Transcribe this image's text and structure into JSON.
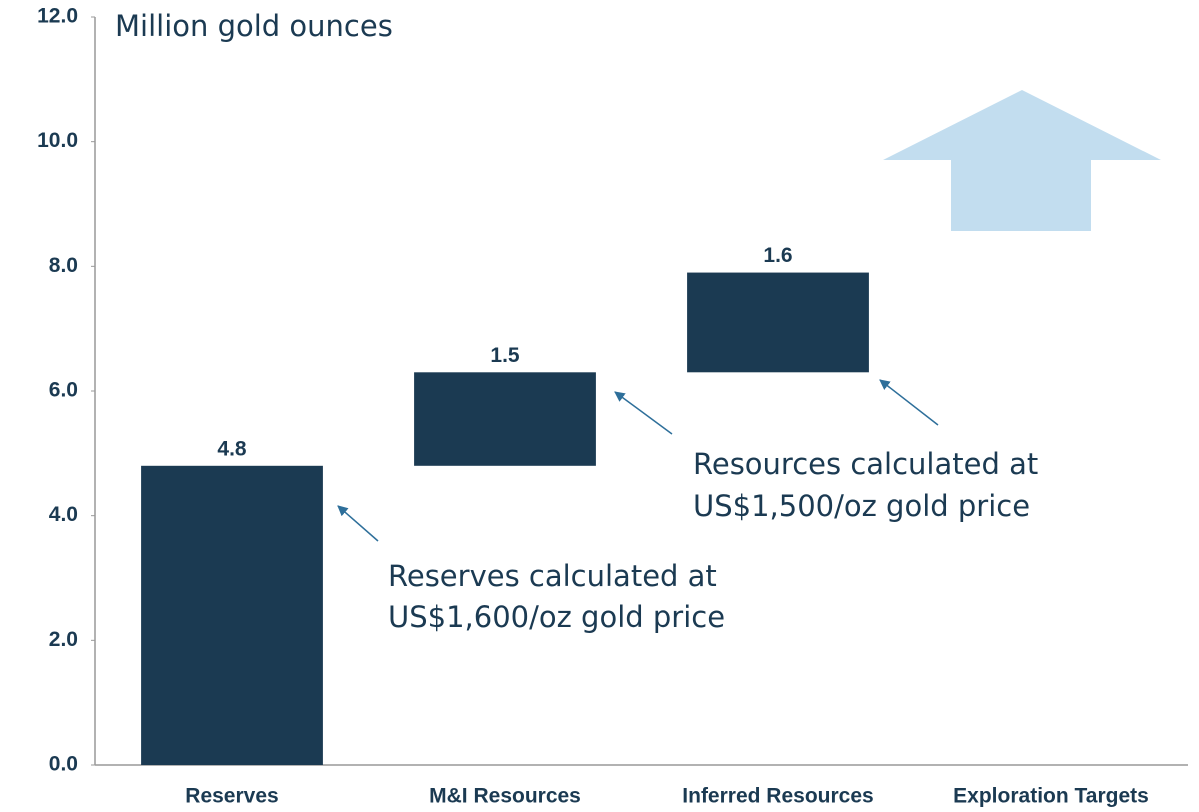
{
  "chart_data": {
    "type": "waterfall",
    "y_label": "Million gold ounces",
    "categories": [
      "Reserves",
      "M&I Resources",
      "Inferred Resources",
      "Exploration Targets"
    ],
    "values": [
      4.8,
      1.5,
      1.6,
      null
    ],
    "color": "#1b3a52",
    "ylim": [
      0,
      12
    ],
    "yticks": [
      {
        "value": 0,
        "label": "0.0"
      },
      {
        "value": 2,
        "label": "2.0"
      },
      {
        "value": 4,
        "label": "4.0"
      },
      {
        "value": 6,
        "label": "6.0"
      },
      {
        "value": 8,
        "label": "8.0"
      },
      {
        "value": 10,
        "label": "10.0"
      },
      {
        "value": 12,
        "label": "12.0"
      }
    ],
    "annotations": [
      [
        "Reserves calculated at",
        "US$1,600/oz gold price"
      ],
      [
        "Resources calculated at",
        "US$1,500/oz gold price"
      ]
    ]
  }
}
